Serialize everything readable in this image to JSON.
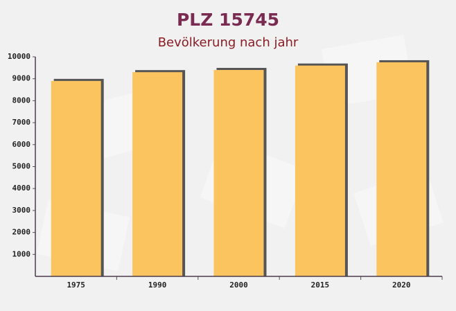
{
  "chart_data": {
    "type": "bar",
    "title": "PLZ 15745",
    "subtitle": "Bevölkerung nach jahr",
    "categories": [
      "1975",
      "1990",
      "2000",
      "2015",
      "2020"
    ],
    "values": [
      8900,
      9300,
      9400,
      9600,
      9750
    ],
    "color": "#fbc45f",
    "ylim": [
      0,
      10000
    ],
    "yticks": [
      1000,
      2000,
      3000,
      4000,
      5000,
      6000,
      7000,
      8000,
      9000,
      10000
    ],
    "grid": false
  }
}
